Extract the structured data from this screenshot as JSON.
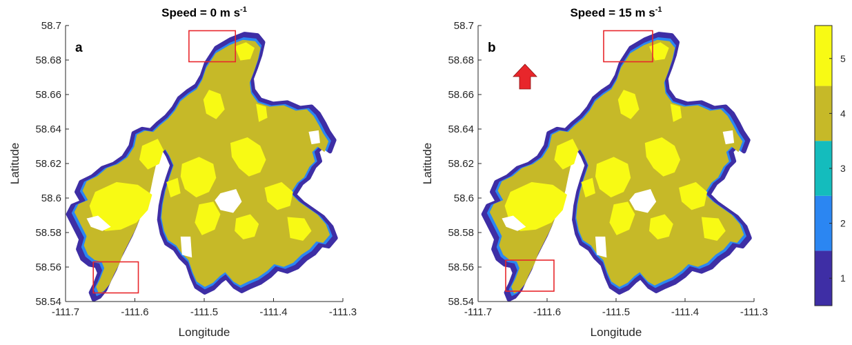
{
  "chart_data": [
    {
      "type": "heatmap",
      "panel_label": "a",
      "title_main": "Speed = 0 m s",
      "title_sup": "-1",
      "xlabel": "Longitude",
      "ylabel": "Latitude",
      "xlim": [
        -111.7,
        -111.3
      ],
      "ylim": [
        58.54,
        58.7
      ],
      "xticks": [
        -111.7,
        -111.6,
        -111.5,
        -111.4,
        -111.3
      ],
      "xtick_labels": [
        "-111.7",
        "-111.6",
        "-111.5",
        "-111.4",
        "-111.3"
      ],
      "yticks": [
        58.54,
        58.56,
        58.58,
        58.6,
        58.62,
        58.64,
        58.66,
        58.68,
        58.7
      ],
      "ytick_labels": [
        "58.54",
        "58.56",
        "58.58",
        "58.6",
        "58.62",
        "58.64",
        "58.66",
        "58.68",
        "58.7"
      ],
      "highlight_boxes": [
        {
          "lon": [
            -111.522,
            -111.455
          ],
          "lat": [
            58.679,
            58.697
          ]
        },
        {
          "lon": [
            -111.66,
            -111.595
          ],
          "lat": [
            58.545,
            58.563
          ]
        }
      ],
      "arrow": null
    },
    {
      "type": "heatmap",
      "panel_label": "b",
      "title_main": "Speed = 15 m s",
      "title_sup": "-1",
      "xlabel": "Longitude",
      "ylabel": "Latitude",
      "xlim": [
        -111.7,
        -111.3
      ],
      "ylim": [
        58.54,
        58.7
      ],
      "xticks": [
        -111.7,
        -111.6,
        -111.5,
        -111.4,
        -111.3
      ],
      "xtick_labels": [
        "-111.7",
        "-111.6",
        "-111.5",
        "-111.4",
        "-111.3"
      ],
      "yticks": [
        58.54,
        58.56,
        58.58,
        58.6,
        58.62,
        58.64,
        58.66,
        58.68,
        58.7
      ],
      "ytick_labels": [
        "58.54",
        "58.56",
        "58.58",
        "58.6",
        "58.62",
        "58.64",
        "58.66",
        "58.68",
        "58.7"
      ],
      "highlight_boxes": [
        {
          "lon": [
            -111.518,
            -111.447
          ],
          "lat": [
            58.679,
            58.697
          ]
        },
        {
          "lon": [
            -111.66,
            -111.59
          ],
          "lat": [
            58.546,
            58.564
          ]
        }
      ],
      "arrow": {
        "lon": -111.632,
        "lat": 58.668,
        "direction": "north",
        "color": "#e8262b"
      }
    }
  ],
  "colorbar": {
    "range": [
      0.5,
      5.6
    ],
    "ticks": [
      1,
      2,
      3,
      4,
      5
    ],
    "tick_labels": [
      "1",
      "2",
      "3",
      "4",
      "5"
    ],
    "classes": [
      {
        "value": 1,
        "color": "#3e2ea5"
      },
      {
        "value": 2,
        "color": "#2b86f2"
      },
      {
        "value": 3,
        "color": "#14bcbd"
      },
      {
        "value": 4,
        "color": "#c6b928"
      },
      {
        "value": 5,
        "color": "#f8fa14"
      }
    ]
  },
  "colors": {
    "box": "#e8262b",
    "land_edge": "#3e2ea5",
    "land_edge_light": "#2b86f2",
    "land_body": "#c6b928",
    "land_bright": "#f8fa14"
  }
}
